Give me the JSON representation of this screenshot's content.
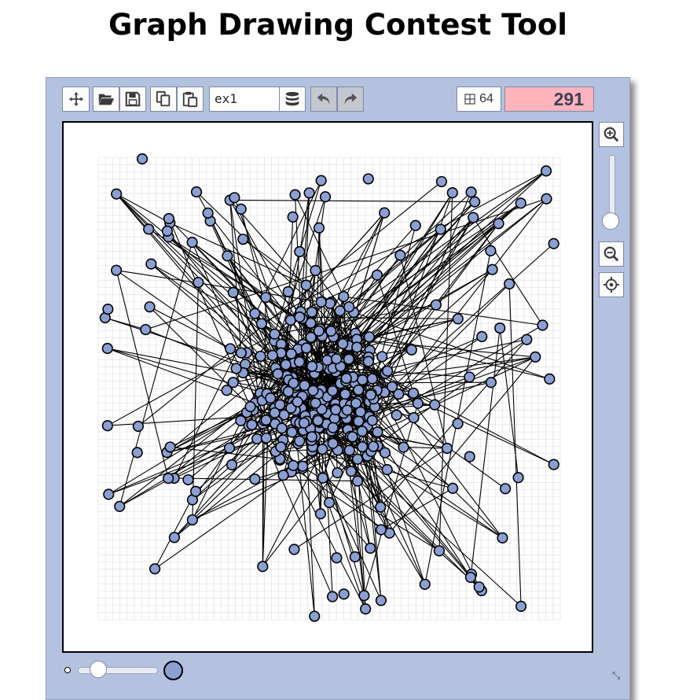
{
  "title": "Graph Drawing Contest Tool",
  "toolbar": {
    "filename": "ex1",
    "grid_size": "64",
    "score": "291",
    "buttons": [
      {
        "name": "move-button",
        "icon": "move-arrows-icon"
      },
      {
        "name": "open-button",
        "icon": "folder-open-icon"
      },
      {
        "name": "save-button",
        "icon": "floppy-disk-icon"
      },
      {
        "name": "copy-button",
        "icon": "copy-icon"
      },
      {
        "name": "paste-button",
        "icon": "clipboard-icon"
      },
      {
        "name": "database-button",
        "icon": "database-icon"
      },
      {
        "name": "undo-button",
        "icon": "undo-arrow-icon"
      },
      {
        "name": "redo-button",
        "icon": "redo-arrow-icon"
      }
    ]
  },
  "sidebar": {
    "zoom_level": 0.9,
    "buttons": [
      {
        "name": "zoom-in-button",
        "icon": "zoom-in-icon"
      },
      {
        "name": "zoom-out-button",
        "icon": "zoom-out-icon"
      },
      {
        "name": "center-view-button",
        "icon": "crosshair-icon"
      }
    ]
  },
  "node_size_slider": {
    "value": 0.25
  },
  "colors": {
    "panel": "#b4c1df",
    "node_fill": "#8b9fd2",
    "score_bg": "#ffb3bd",
    "grid": "#dcdcdc",
    "edge": "#000000"
  }
}
